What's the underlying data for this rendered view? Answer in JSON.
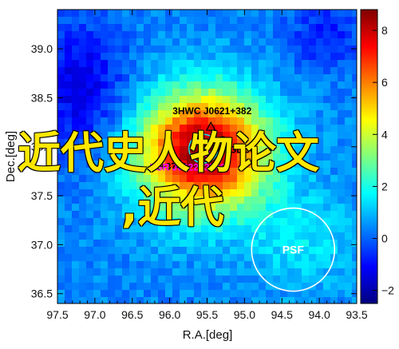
{
  "chart_data": {
    "type": "heatmap",
    "title": "",
    "xlabel": "R.A.[deg]",
    "ylabel": "Dec.[deg]",
    "xlim": [
      97.5,
      93.5
    ],
    "ylim": [
      36.4,
      39.4
    ],
    "x_ticks": [
      "97.5",
      "97.0",
      "96.5",
      "96.0",
      "95.5",
      "95.0",
      "94.5",
      "94.0",
      "93.5"
    ],
    "y_ticks": [
      "36.5",
      "37.0",
      "37.5",
      "38.0",
      "38.5",
      "39.0"
    ],
    "colorbar": {
      "range": [
        -2.5,
        8.8
      ],
      "ticks": [
        "8",
        "6",
        "4",
        "2",
        "0",
        "−2"
      ],
      "colormap": "jet"
    },
    "peak": {
      "ra": 95.55,
      "dec": 37.95,
      "value": 8.6
    },
    "sources": [
      {
        "label": "3HWC J0621+382",
        "ra": 95.45,
        "dec": 38.2,
        "marker": "triangle",
        "color": "#000000"
      },
      {
        "label": "4FGL J0",
        "ra": 95.25,
        "dec": 37.97,
        "marker": "circle",
        "color": "#000000"
      },
      {
        "label": "2+3749",
        "ra": 95.9,
        "dec": 37.8,
        "marker": "none",
        "color": "#000000"
      },
      {
        "label": "PSR J0622+3749",
        "ra": 95.5,
        "dec": 37.83,
        "marker": "circle",
        "color": "#ff00ff"
      }
    ],
    "psf": {
      "label": "PSF",
      "ra": 94.35,
      "dec": 36.95
    }
  },
  "overlay": {
    "line1": "近代史人物论文",
    "line2": ",近代"
  }
}
